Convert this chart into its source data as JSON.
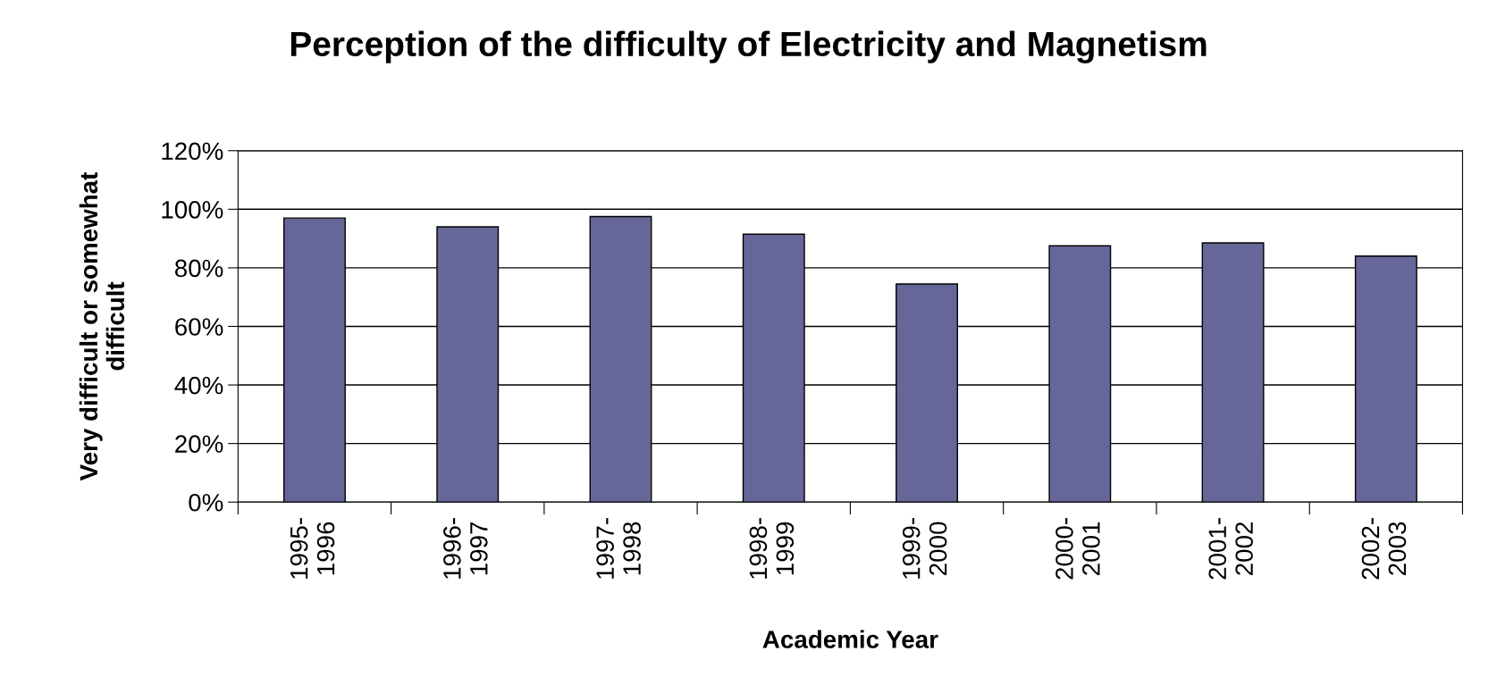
{
  "chart_data": {
    "type": "bar",
    "title": "Perception of the difficulty of Electricity and Magnetism",
    "xlabel": "Academic Year",
    "ylabel": "Very difficult or somewhat\ndifficult",
    "categories": [
      "1995-\n1996",
      "1996-\n1997",
      "1997-\n1998",
      "1998-\n1999",
      "1999-\n2000",
      "2000-\n2001",
      "2001-\n2002",
      "2002-\n2003"
    ],
    "values": [
      97,
      94,
      97.5,
      91.5,
      74.5,
      87.5,
      88.5,
      84
    ],
    "color": "#666699",
    "ylim": [
      0,
      120
    ],
    "yticks": [
      {
        "value": 0,
        "label": "0%"
      },
      {
        "value": 20,
        "label": "20%"
      },
      {
        "value": 40,
        "label": "40%"
      },
      {
        "value": 60,
        "label": "60%"
      },
      {
        "value": 80,
        "label": "80%"
      },
      {
        "value": 100,
        "label": "100%"
      },
      {
        "value": 120,
        "label": "120%"
      }
    ],
    "grid": "y",
    "legend": false
  }
}
